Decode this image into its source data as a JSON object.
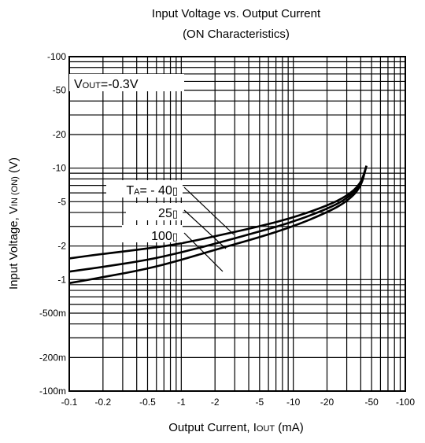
{
  "chart_data": {
    "type": "line",
    "title": "Input Voltage vs. Output Current",
    "subtitle": "(ON Characteristics)",
    "xlabel": {
      "main": "Output Current, I",
      "sub": "OUT",
      "suffix": " (mA)"
    },
    "ylabel": {
      "main": "Input Voltage, V",
      "sub": "IN (ON)",
      "suffix": " (V)"
    },
    "x_scale": "log",
    "y_scale": "log",
    "xlim": [
      -0.1,
      -100
    ],
    "ylim": [
      -0.1,
      -100
    ],
    "x_ticks": [
      {
        "value": -0.1,
        "label": "-0.1"
      },
      {
        "value": -0.2,
        "label": "-0.2"
      },
      {
        "value": -0.5,
        "label": "-0.5"
      },
      {
        "value": -1,
        "label": "-1"
      },
      {
        "value": -2,
        "label": "-2"
      },
      {
        "value": -5,
        "label": "-5"
      },
      {
        "value": -10,
        "label": "-10"
      },
      {
        "value": -20,
        "label": "-20"
      },
      {
        "value": -50,
        "label": "-50"
      },
      {
        "value": -100,
        "label": "-100"
      }
    ],
    "y_ticks": [
      {
        "value": -100,
        "label": "-100"
      },
      {
        "value": -50,
        "label": "-50"
      },
      {
        "value": -20,
        "label": "-20"
      },
      {
        "value": -10,
        "label": "-10"
      },
      {
        "value": -5,
        "label": "-5"
      },
      {
        "value": -2,
        "label": "-2"
      },
      {
        "value": -1,
        "label": "-1"
      },
      {
        "value": -0.5,
        "label": "-500m"
      },
      {
        "value": -0.2,
        "label": "-200m"
      },
      {
        "value": -0.1,
        "label": "-100m"
      }
    ],
    "grid": true,
    "condition": {
      "main": "V",
      "sub": "OUT",
      "suffix": "=-0.3V"
    },
    "series": [
      {
        "name": "- 40",
        "label_prefix": "T",
        "label_sub": "A",
        "label_eq": "= ",
        "unit_glyph": "▯",
        "x": [
          -0.1,
          -0.2,
          -0.5,
          -1,
          -2,
          -5,
          -10,
          -20,
          -30,
          -40,
          -45
        ],
        "y": [
          -1.55,
          -1.7,
          -1.9,
          -2.1,
          -2.45,
          -3.0,
          -3.6,
          -4.6,
          -5.6,
          -7.2,
          -10.5
        ]
      },
      {
        "name": "25",
        "unit_glyph": "▯",
        "x": [
          -0.1,
          -0.2,
          -0.5,
          -1,
          -2,
          -5,
          -10,
          -20,
          -30,
          -40,
          -45
        ],
        "y": [
          -1.18,
          -1.3,
          -1.5,
          -1.75,
          -2.1,
          -2.7,
          -3.3,
          -4.3,
          -5.3,
          -7.0,
          -10.5
        ]
      },
      {
        "name": "100",
        "unit_glyph": "▯",
        "x": [
          -0.1,
          -0.2,
          -0.5,
          -1,
          -2,
          -5,
          -10,
          -20,
          -30,
          -40,
          -45
        ],
        "y": [
          -0.93,
          -1.05,
          -1.25,
          -1.5,
          -1.85,
          -2.4,
          -3.0,
          -4.0,
          -5.0,
          -6.7,
          -10.5
        ]
      }
    ]
  }
}
